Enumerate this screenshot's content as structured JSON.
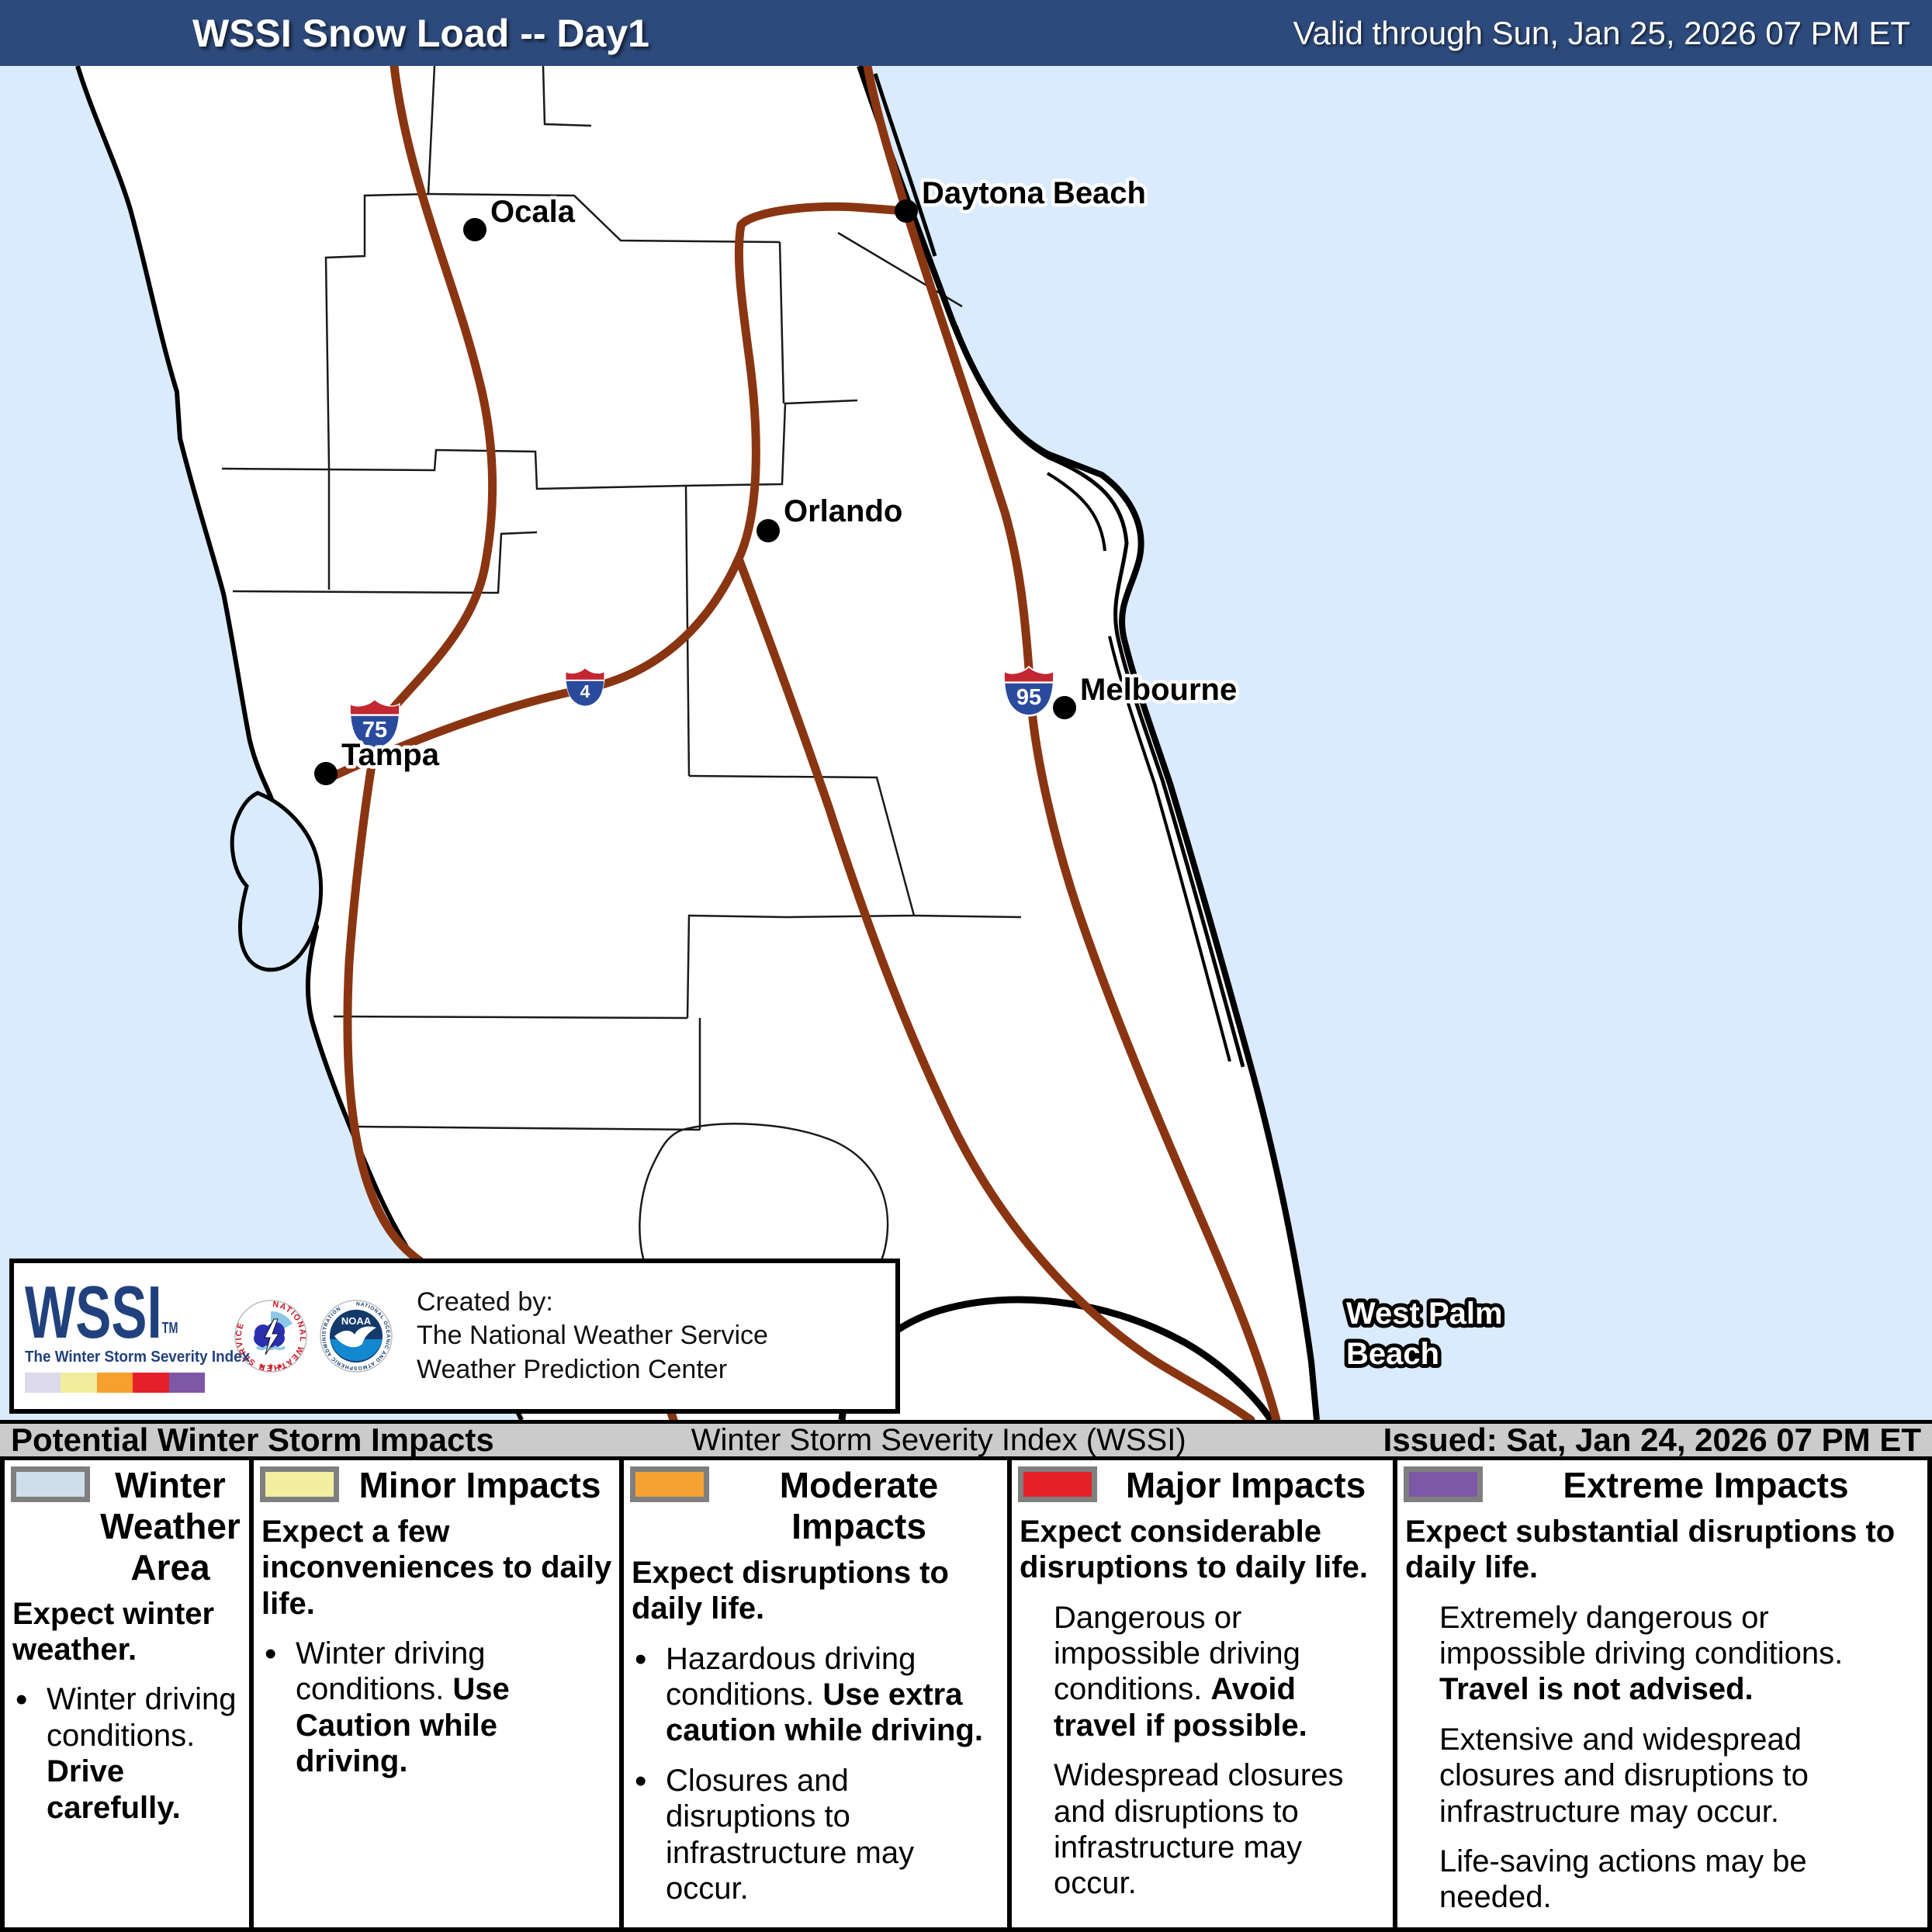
{
  "colors": {
    "header_bg": "#2d4a7c",
    "ocean": "#d9ebfc",
    "road": "#8a3512",
    "county": "#1a1a1a",
    "shield_red": "#c32732",
    "shield_blue": "#2a4a9d",
    "bar_bg": "#cbcbcb",
    "wssi_navy": "#21417e"
  },
  "header": {
    "title": "WSSI Snow Load -- Day1",
    "valid": "Valid through Sun, Jan 25, 2026 07 PM ET"
  },
  "map": {
    "cities": [
      {
        "name": "Ocala"
      },
      {
        "name": "Daytona Beach"
      },
      {
        "name": "Orlando"
      },
      {
        "name": "Tampa"
      },
      {
        "name": "Melbourne"
      },
      {
        "name": "West Palm Beach",
        "lines": [
          "West Palm",
          "Beach"
        ]
      }
    ],
    "shields": [
      {
        "number": "75"
      },
      {
        "number": "4"
      },
      {
        "number": "95"
      }
    ]
  },
  "logo_box": {
    "wssi": "WSSI",
    "tm": "TM",
    "tagline": "The Winter Storm Severity Index",
    "colorbar": [
      "#dcd9ea",
      "#f0ee9c",
      "#f5a02f",
      "#e6202a",
      "#7e57a7"
    ],
    "nws_ring_text": "NATIONAL WEATHER SERVICE",
    "nws_stars": "★ ★ ★",
    "noaa_ring_text": "NATIONAL OCEANIC AND ATMOSPHERIC ADMINISTRATION",
    "noaa_label": "NOAA",
    "created_by_1": "Created by:",
    "created_by_2": "The National Weather Service",
    "created_by_3": "Weather Prediction Center"
  },
  "info_bar": {
    "left": "Potential Winter Storm Impacts",
    "center": "Winter Storm Severity Index (WSSI)",
    "right": "Issued: Sat, Jan 24, 2026 07 PM ET"
  },
  "legend": {
    "bullet_char": "•",
    "columns": [
      {
        "swatch": "#cfdfea",
        "title": "Winter Weather Area",
        "lead": [
          {
            "t": "Expect winter weather.",
            "b": true
          }
        ],
        "items": [
          {
            "bullet": true,
            "runs": [
              {
                "t": "Winter driving conditions. ",
                "b": false
              },
              {
                "t": "Drive carefully.",
                "b": true
              }
            ]
          }
        ]
      },
      {
        "swatch": "#f2f0a0",
        "title": "Minor Impacts",
        "lead": [
          {
            "t": "Expect a few inconveniences to daily life.",
            "b": true
          }
        ],
        "items": [
          {
            "bullet": true,
            "runs": [
              {
                "t": "Winter driving conditions. ",
                "b": false
              },
              {
                "t": "Use Caution while driving.",
                "b": true
              }
            ]
          }
        ]
      },
      {
        "swatch": "#f6a233",
        "title": "Moderate Impacts",
        "lead": [
          {
            "t": "Expect disruptions to daily life.",
            "b": true
          }
        ],
        "items": [
          {
            "bullet": true,
            "runs": [
              {
                "t": "Hazardous driving conditions. ",
                "b": false
              },
              {
                "t": "Use extra caution while driving.",
                "b": true
              }
            ]
          },
          {
            "bullet": true,
            "runs": [
              {
                "t": "Closures and disruptions to infrastructure may occur.",
                "b": false
              }
            ]
          }
        ]
      },
      {
        "swatch": "#e62129",
        "title": "Major Impacts",
        "lead": [
          {
            "t": "Expect considerable disruptions to daily life.",
            "b": true
          }
        ],
        "items": [
          {
            "bullet": false,
            "runs": [
              {
                "t": "Dangerous or impossible driving conditions. ",
                "b": false
              },
              {
                "t": "Avoid travel if possible.",
                "b": true
              }
            ]
          },
          {
            "bullet": false,
            "runs": [
              {
                "t": "Widespread closures and disruptions to infrastructure may occur.",
                "b": false
              }
            ]
          }
        ]
      },
      {
        "swatch": "#7e57a7",
        "title": "Extreme Impacts",
        "lead": [
          {
            "t": "Expect substantial disruptions to daily life.",
            "b": true
          }
        ],
        "items": [
          {
            "bullet": false,
            "runs": [
              {
                "t": "Extremely dangerous or impossible driving conditions. ",
                "b": false
              },
              {
                "t": "Travel is not advised.",
                "b": true
              }
            ]
          },
          {
            "bullet": false,
            "runs": [
              {
                "t": "Extensive and widespread closures and disruptions to infrastructure may occur.",
                "b": false
              }
            ]
          },
          {
            "bullet": false,
            "runs": [
              {
                "t": "Life-saving actions may be needed.",
                "b": false
              }
            ]
          }
        ]
      }
    ]
  }
}
